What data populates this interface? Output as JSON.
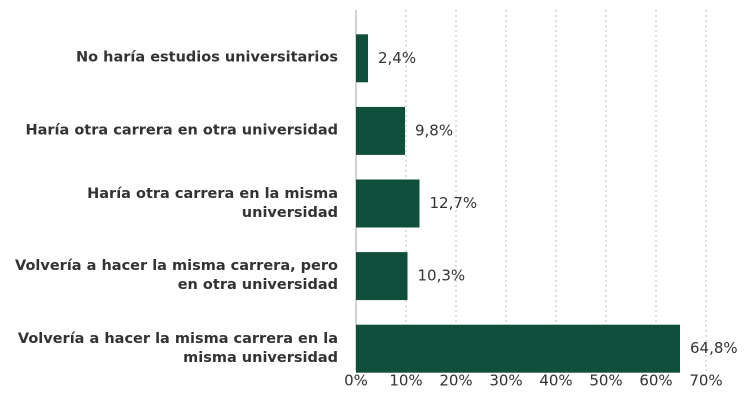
{
  "chart_data": {
    "type": "hbar",
    "categories": [
      "No haría estudios universitarios",
      "Haría otra carrera en otra universidad",
      "Haría otra carrera en la misma universidad",
      "Volvería a hacer la misma carrera, pero en otra universidad",
      "Volvería a hacer la misma carrera en la misma universidad"
    ],
    "values": [
      2.4,
      9.8,
      12.7,
      10.3,
      64.8
    ],
    "value_labels": [
      "2,4%",
      "9,8%",
      "12,7%",
      "10,3%",
      "64,8%"
    ],
    "color": "#0f4f3c",
    "xlim": [
      0,
      70
    ],
    "xticks": [
      {
        "value": 0,
        "label": "0%"
      },
      {
        "value": 10,
        "label": "10%"
      },
      {
        "value": 20,
        "label": "20%"
      },
      {
        "value": 30,
        "label": "30%"
      },
      {
        "value": 40,
        "label": "40%"
      },
      {
        "value": 50,
        "label": "50%"
      },
      {
        "value": 60,
        "label": "60%"
      },
      {
        "value": 70,
        "label": "70%"
      }
    ],
    "grid": true
  }
}
